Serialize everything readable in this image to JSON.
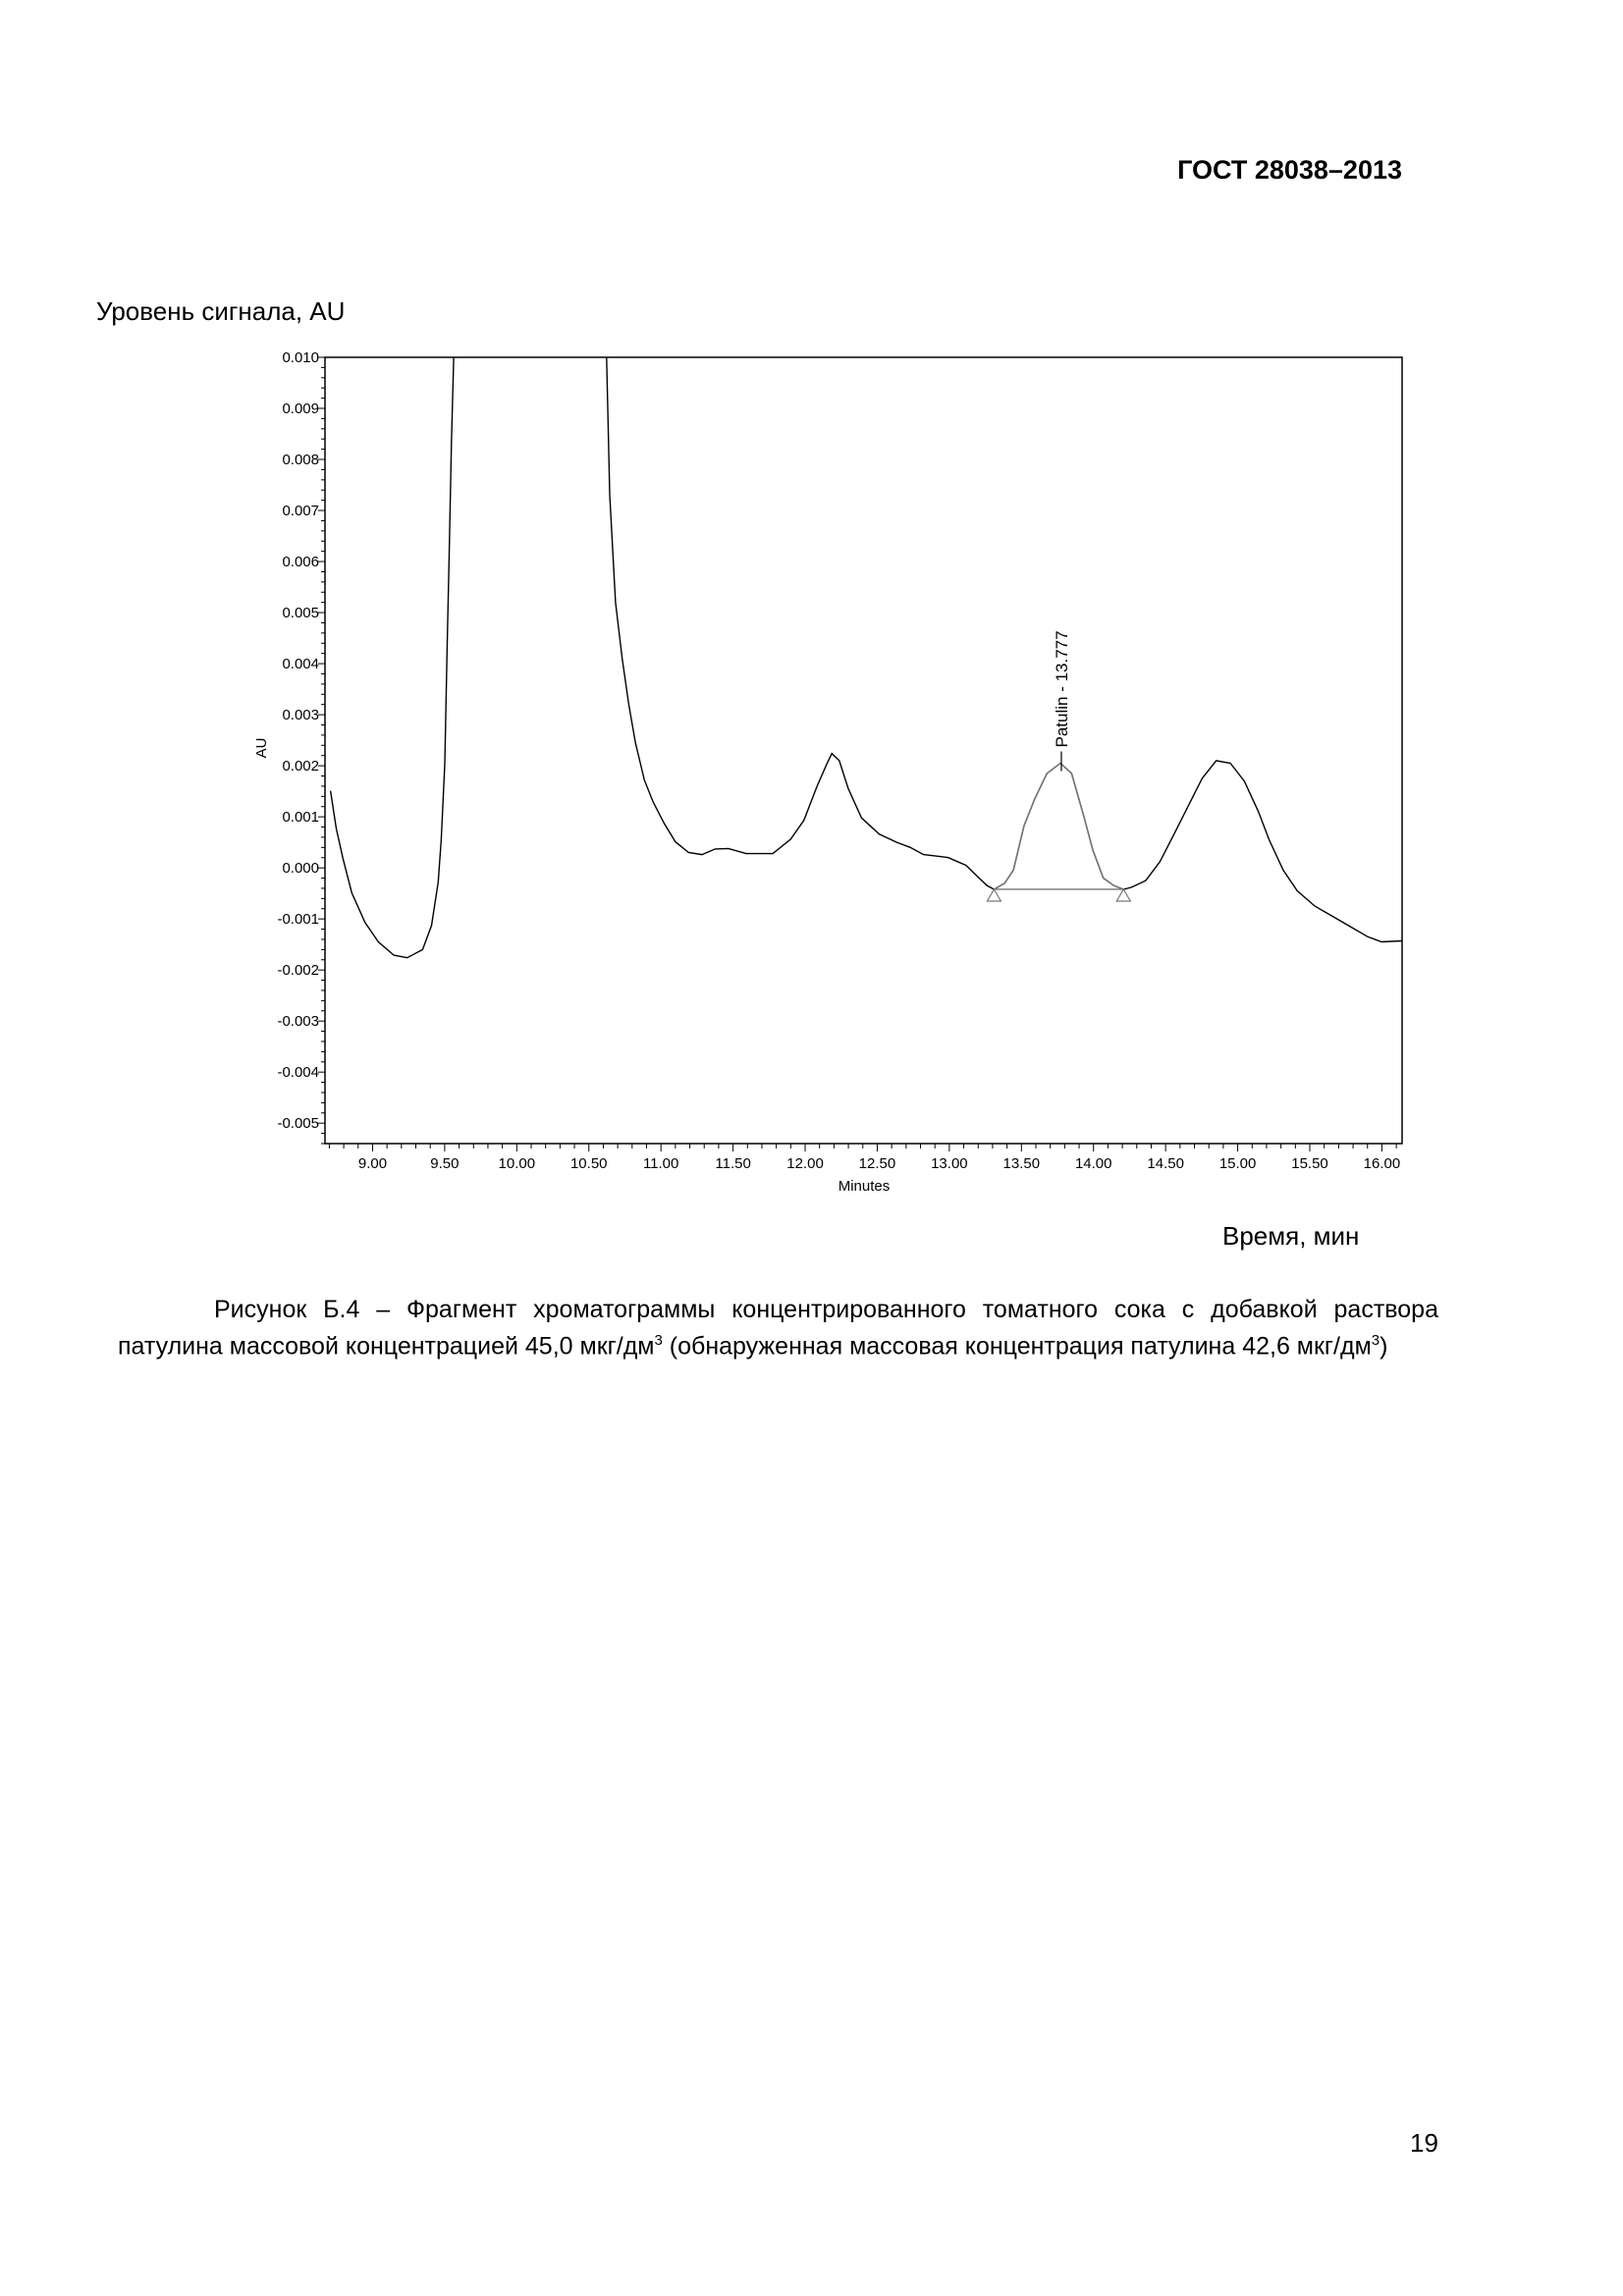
{
  "header": {
    "standard": "ГОСТ 28038–2013"
  },
  "figure": {
    "y_caption": "Уровень сигнала, AU",
    "x_caption": "Время, мин",
    "caption_line1": "Рисунок Б.4 – Фрагмент хроматограммы концентрированного томатного сока с добавкой раствора патулина массовой концентрацией 45,0 мкг/дм",
    "caption_sup1": "3",
    "caption_line2": " (обнаруженная массовая концентрация патулина 42,6 мкг/дм",
    "caption_sup2": "3",
    "caption_end": ")"
  },
  "page_number": "19",
  "chart_data": {
    "type": "line",
    "xlabel": "Minutes",
    "ylabel": "AU",
    "xlim": [
      8.67,
      16.14
    ],
    "ylim": [
      -0.0054,
      0.01
    ],
    "x_ticks": [
      "9.00",
      "9.50",
      "10.00",
      "10.50",
      "11.00",
      "11.50",
      "12.00",
      "12.50",
      "13.00",
      "13.50",
      "14.00",
      "14.50",
      "15.00",
      "15.50",
      "16.00"
    ],
    "y_ticks": [
      "0.010",
      "0.009",
      "0.008",
      "0.007",
      "0.006",
      "0.005",
      "0.004",
      "0.003",
      "0.002",
      "0.001",
      "0.000",
      "-0.001",
      "-0.002",
      "-0.003",
      "-0.004",
      "-0.005"
    ],
    "grid": false,
    "line_color": "#000000",
    "integrated_peak_color": "#777777",
    "series": [
      {
        "x": [
          8.708,
          8.748,
          8.794,
          8.856,
          8.948,
          9.04,
          9.148,
          9.24,
          9.347,
          9.409,
          9.455,
          9.476,
          9.501,
          9.516,
          9.532,
          9.547,
          9.563,
          9.6,
          10.58,
          10.623,
          10.645,
          10.685,
          10.731,
          10.777,
          10.823,
          10.885,
          10.946,
          11.023,
          11.1,
          11.192,
          11.284,
          11.376,
          11.468,
          11.591,
          11.776,
          11.899,
          11.991,
          12.083,
          12.145,
          12.185,
          12.237,
          12.298,
          12.391,
          12.514,
          12.636,
          12.729,
          12.821,
          12.944,
          12.993,
          13.115,
          13.188,
          13.262,
          13.31,
          13.384,
          13.445,
          13.518,
          13.592,
          13.677,
          13.77,
          13.848,
          13.934,
          13.995,
          14.068,
          14.142,
          14.208,
          14.264,
          14.362,
          14.46,
          14.557,
          14.655,
          14.753,
          14.851,
          14.949,
          15.046,
          15.144,
          15.218,
          15.315,
          15.413,
          15.535,
          15.658,
          15.78,
          15.902,
          15.998,
          16.14
        ],
        "y": [
          0.00151,
          0.00077,
          0.00019,
          -0.00049,
          -0.00107,
          -0.00145,
          -0.00171,
          -0.00176,
          -0.0016,
          -0.00113,
          -0.00028,
          0.00056,
          0.00203,
          0.00414,
          0.00625,
          0.00835,
          0.01,
          0.02,
          0.02,
          0.01,
          0.0073,
          0.0052,
          0.0041,
          0.0032,
          0.00245,
          0.00172,
          0.00129,
          0.00087,
          0.00051,
          0.0003,
          0.00026,
          0.00037,
          0.00038,
          0.00028,
          0.00028,
          0.00056,
          0.00093,
          0.0016,
          0.002,
          0.00224,
          0.0021,
          0.00156,
          0.00098,
          0.00066,
          0.0005,
          0.0004,
          0.00026,
          0.00022,
          0.0002,
          5e-05,
          -0.00015,
          -0.00035,
          -0.00042,
          -0.0003,
          -4e-05,
          0.00082,
          0.00135,
          0.00185,
          0.00205,
          0.00185,
          0.001,
          0.00035,
          -0.0002,
          -0.00035,
          -0.00042,
          -0.00038,
          -0.00025,
          0.00012,
          0.00065,
          0.0012,
          0.00175,
          0.0021,
          0.00205,
          0.0017,
          0.0011,
          0.00055,
          -4e-05,
          -0.00045,
          -0.00075,
          -0.00095,
          -0.00115,
          -0.00135,
          -0.00145,
          -0.00143
        ]
      }
    ],
    "peak_annotation": {
      "label": "Patulin - 13.777",
      "rt": 13.777,
      "start": 13.31,
      "end": 14.208,
      "baseline": -0.00042
    }
  }
}
